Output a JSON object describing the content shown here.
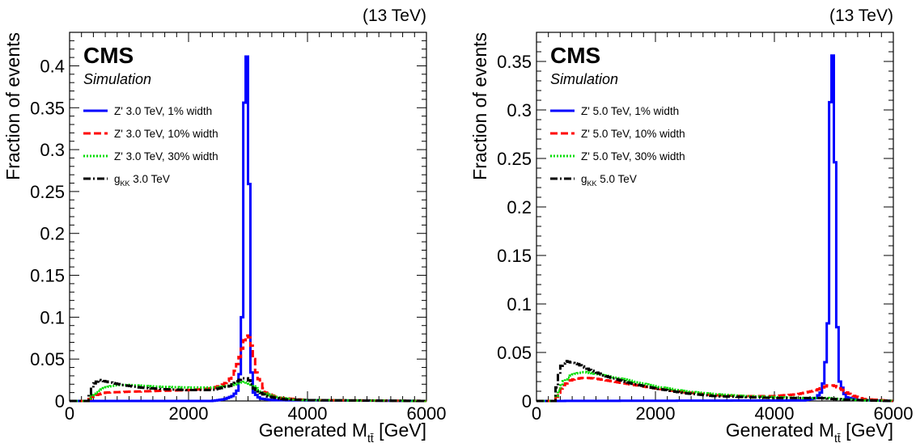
{
  "chart_data": [
    {
      "type": "line",
      "energy_label": "(13 TeV)",
      "experiment": "CMS",
      "subtitle": "Simulation",
      "ylabel": "Fraction of events",
      "xlabel_main": "Generated M",
      "xlabel_sub": "tt̄",
      "xlabel_unit": " [GeV]",
      "xlim": [
        0,
        6000
      ],
      "ylim": [
        0,
        0.44
      ],
      "x_ticks": [
        "0",
        "2000",
        "4000",
        "6000"
      ],
      "y_ticks": [
        "0",
        "0.05",
        "0.1",
        "0.15",
        "0.2",
        "0.25",
        "0.3",
        "0.35",
        "0.4"
      ],
      "legend": [
        {
          "label": "Z' 3.0 TeV, 1% width",
          "color": "#0000ff",
          "dash": "solid"
        },
        {
          "label": "Z' 3.0 TeV, 10% width",
          "color": "#ff0000",
          "dash": "dashed"
        },
        {
          "label": "Z' 3.0 TeV, 30% width",
          "color": "#00dd00",
          "dash": "dotted"
        },
        {
          "label_prefix": "g",
          "label_sub": "KK",
          "label_suffix": " 3.0 TeV",
          "color": "#000000",
          "dash": "dashdot"
        }
      ],
      "series": [
        {
          "name": "Z' 3.0 TeV, 1% width",
          "color": "#0000ff",
          "style": "solid",
          "x": [
            0,
            2400,
            2600,
            2750,
            2850,
            2900,
            2950,
            3000,
            3050,
            3100,
            3200,
            3400,
            6000
          ],
          "y": [
            0,
            0,
            0.002,
            0.006,
            0.015,
            0.1,
            0.42,
            0.405,
            0.04,
            0.01,
            0.003,
            0.001,
            0
          ]
        },
        {
          "name": "Z' 3.0 TeV, 10% width",
          "color": "#ff0000",
          "style": "dashed",
          "x": [
            0,
            300,
            400,
            600,
            1000,
            1500,
            2000,
            2400,
            2600,
            2750,
            2850,
            2950,
            3000,
            3050,
            3150,
            3300,
            3500,
            4000,
            6000
          ],
          "y": [
            0,
            0,
            0.006,
            0.01,
            0.011,
            0.012,
            0.013,
            0.015,
            0.02,
            0.03,
            0.05,
            0.075,
            0.08,
            0.07,
            0.03,
            0.01,
            0.004,
            0.001,
            0
          ]
        },
        {
          "name": "Z' 3.0 TeV, 30% width",
          "color": "#00dd00",
          "style": "dotted",
          "x": [
            0,
            300,
            400,
            600,
            800,
            1000,
            1500,
            2000,
            2500,
            2800,
            2950,
            3050,
            3200,
            3400,
            3700,
            4000,
            6000
          ],
          "y": [
            0,
            0,
            0.008,
            0.016,
            0.019,
            0.019,
            0.017,
            0.016,
            0.016,
            0.02,
            0.023,
            0.02,
            0.012,
            0.006,
            0.002,
            0.001,
            0
          ]
        },
        {
          "name": "g KK 3.0 TeV",
          "color": "#000000",
          "style": "dashdot",
          "x": [
            0,
            300,
            400,
            500,
            700,
            900,
            1200,
            1600,
            2000,
            2400,
            2700,
            2900,
            3000,
            3100,
            3300,
            3600,
            4000,
            6000
          ],
          "y": [
            0,
            0,
            0.02,
            0.025,
            0.022,
            0.019,
            0.016,
            0.014,
            0.013,
            0.013,
            0.018,
            0.027,
            0.027,
            0.015,
            0.006,
            0.002,
            0.001,
            0
          ]
        }
      ]
    },
    {
      "type": "line",
      "energy_label": "(13 TeV)",
      "experiment": "CMS",
      "subtitle": "Simulation",
      "ylabel": "Fraction of events",
      "xlabel_main": "Generated M",
      "xlabel_sub": "tt̄",
      "xlabel_unit": " [GeV]",
      "xlim": [
        0,
        6000
      ],
      "ylim": [
        0,
        0.38
      ],
      "x_ticks": [
        "0",
        "2000",
        "4000",
        "6000"
      ],
      "y_ticks": [
        "0",
        "0.05",
        "0.1",
        "0.15",
        "0.2",
        "0.25",
        "0.3",
        "0.35"
      ],
      "legend": [
        {
          "label": "Z' 5.0 TeV, 1% width",
          "color": "#0000ff",
          "dash": "solid"
        },
        {
          "label": "Z' 5.0 TeV, 10% width",
          "color": "#ff0000",
          "dash": "dashed"
        },
        {
          "label": "Z' 5.0 TeV, 30% width",
          "color": "#00dd00",
          "dash": "dotted"
        },
        {
          "label_prefix": "g",
          "label_sub": "KK",
          "label_suffix": " 5.0 TeV",
          "color": "#000000",
          "dash": "dashdot"
        }
      ],
      "series": [
        {
          "name": "Z' 5.0 TeV, 1% width",
          "color": "#0000ff",
          "style": "solid",
          "x": [
            0,
            4500,
            4700,
            4800,
            4850,
            4900,
            4950,
            5000,
            5050,
            5100,
            5200,
            5400,
            6000
          ],
          "y": [
            0,
            0.0005,
            0.003,
            0.01,
            0.03,
            0.08,
            0.365,
            0.35,
            0.09,
            0.02,
            0.004,
            0.001,
            0
          ]
        },
        {
          "name": "Z' 5.0 TeV, 10% width",
          "color": "#ff0000",
          "style": "dashed",
          "x": [
            0,
            300,
            450,
            600,
            800,
            1000,
            1500,
            2000,
            2500,
            3000,
            3500,
            4000,
            4400,
            4700,
            4900,
            5000,
            5100,
            5300,
            5500,
            6000
          ],
          "y": [
            0,
            0,
            0.016,
            0.022,
            0.024,
            0.023,
            0.018,
            0.013,
            0.009,
            0.006,
            0.005,
            0.005,
            0.007,
            0.011,
            0.016,
            0.016,
            0.013,
            0.006,
            0.002,
            0
          ]
        },
        {
          "name": "Z' 5.0 TeV, 30% width",
          "color": "#00dd00",
          "style": "dotted",
          "x": [
            0,
            300,
            450,
            600,
            800,
            1000,
            1500,
            2000,
            2500,
            3000,
            3500,
            4000,
            4500,
            4900,
            5100,
            5400,
            6000
          ],
          "y": [
            0,
            0,
            0.02,
            0.027,
            0.03,
            0.028,
            0.022,
            0.015,
            0.01,
            0.007,
            0.005,
            0.004,
            0.003,
            0.003,
            0.002,
            0.001,
            0
          ]
        },
        {
          "name": "g KK 5.0 TeV",
          "color": "#000000",
          "style": "dashdot",
          "x": [
            0,
            300,
            400,
            500,
            700,
            900,
            1200,
            1600,
            2000,
            2500,
            3000,
            3500,
            4000,
            4500,
            4800,
            5000,
            5300,
            5600,
            6000
          ],
          "y": [
            0,
            0,
            0.035,
            0.041,
            0.038,
            0.032,
            0.025,
            0.018,
            0.013,
            0.008,
            0.005,
            0.004,
            0.003,
            0.003,
            0.003,
            0.002,
            0.001,
            0.0005,
            0
          ]
        }
      ]
    }
  ]
}
